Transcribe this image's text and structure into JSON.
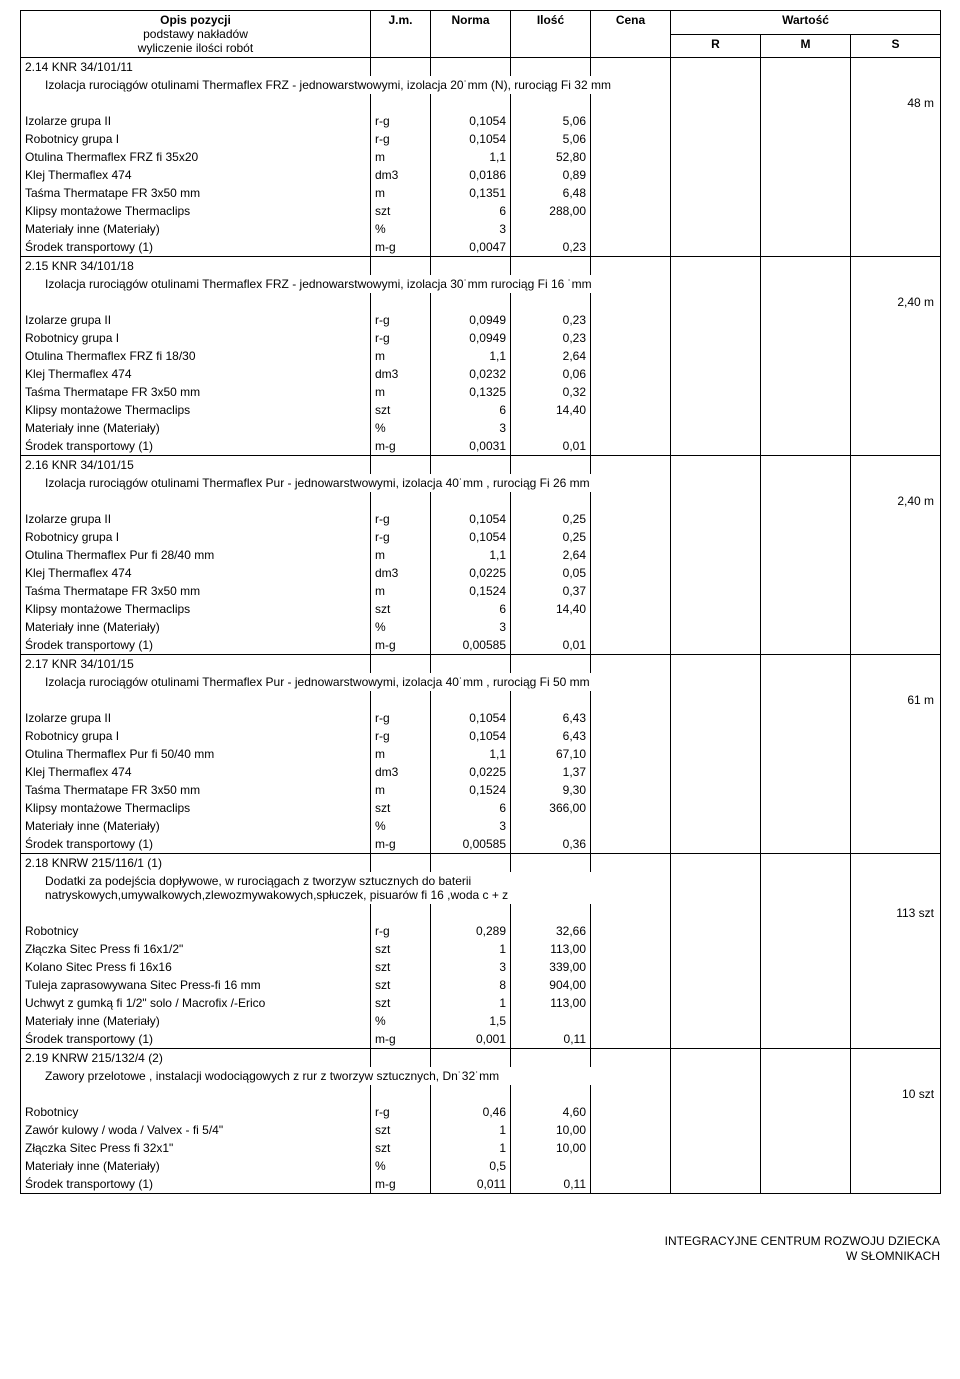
{
  "header": {
    "opis": "Opis pozycji",
    "sub1": "podstawy nakładów",
    "sub2": "wyliczenie ilości robót",
    "jm": "J.m.",
    "norma": "Norma",
    "ilosc": "Ilość",
    "cena": "Cena",
    "wartosc": "Wartość",
    "r": "R",
    "m": "M",
    "s": "S"
  },
  "sections": [
    {
      "code": "2.14 KNR 34/101/11",
      "title": "Izolacja rurociągów otulinami Thermaflex FRZ - jednowarstwowymi, izolacja 20˙mm (N), rurociąg Fi 32 mm",
      "total_qty": "48 m",
      "rows": [
        {
          "desc": "Izolarze grupa II",
          "jm": "r-g",
          "norma": "0,1054",
          "ilosc": "5,06"
        },
        {
          "desc": "Robotnicy grupa I",
          "jm": "r-g",
          "norma": "0,1054",
          "ilosc": "5,06"
        },
        {
          "desc": "Otulina Thermaflex FRZ fi 35x20",
          "jm": "m",
          "norma": "1,1",
          "ilosc": "52,80"
        },
        {
          "desc": "Klej Thermaflex 474",
          "jm": "dm3",
          "norma": "0,0186",
          "ilosc": "0,89"
        },
        {
          "desc": "Taśma Thermatape FR 3x50 mm",
          "jm": "m",
          "norma": "0,1351",
          "ilosc": "6,48"
        },
        {
          "desc": "Klipsy montażowe Thermaclips",
          "jm": "szt",
          "norma": "6",
          "ilosc": "288,00"
        },
        {
          "desc": "Materiały inne (Materiały)",
          "jm": "%",
          "norma": "3",
          "ilosc": ""
        },
        {
          "desc": "Środek transportowy (1)",
          "jm": "m-g",
          "norma": "0,0047",
          "ilosc": "0,23"
        }
      ]
    },
    {
      "code": "2.15 KNR 34/101/18",
      "title": "Izolacja rurociągów otulinami Thermaflex FRZ - jednowarstwowymi, izolacja 30˙mm  rurociąg Fi 16 ˙mm",
      "total_qty": "2,40 m",
      "rows": [
        {
          "desc": "Izolarze grupa II",
          "jm": "r-g",
          "norma": "0,0949",
          "ilosc": "0,23"
        },
        {
          "desc": "Robotnicy grupa I",
          "jm": "r-g",
          "norma": "0,0949",
          "ilosc": "0,23"
        },
        {
          "desc": "Otulina Thermaflex FRZ fi 18/30",
          "jm": "m",
          "norma": "1,1",
          "ilosc": "2,64"
        },
        {
          "desc": "Klej Thermaflex 474",
          "jm": "dm3",
          "norma": "0,0232",
          "ilosc": "0,06"
        },
        {
          "desc": "Taśma Thermatape FR 3x50 mm",
          "jm": "m",
          "norma": "0,1325",
          "ilosc": "0,32"
        },
        {
          "desc": "Klipsy montażowe Thermaclips",
          "jm": "szt",
          "norma": "6",
          "ilosc": "14,40"
        },
        {
          "desc": "Materiały inne (Materiały)",
          "jm": "%",
          "norma": "3",
          "ilosc": ""
        },
        {
          "desc": "Środek transportowy (1)",
          "jm": "m-g",
          "norma": "0,0031",
          "ilosc": "0,01"
        }
      ]
    },
    {
      "code": "2.16 KNR 34/101/15",
      "title": "Izolacja rurociągów otulinami Thermaflex Pur  - jednowarstwowymi, izolacja 40˙mm , rurociąg Fi 26 mm",
      "total_qty": "2,40 m",
      "rows": [
        {
          "desc": "Izolarze grupa II",
          "jm": "r-g",
          "norma": "0,1054",
          "ilosc": "0,25"
        },
        {
          "desc": "Robotnicy grupa I",
          "jm": "r-g",
          "norma": "0,1054",
          "ilosc": "0,25"
        },
        {
          "desc": "Otulina Thermaflex Pur fi 28/40 mm",
          "jm": "m",
          "norma": "1,1",
          "ilosc": "2,64"
        },
        {
          "desc": "Klej Thermaflex 474",
          "jm": "dm3",
          "norma": "0,0225",
          "ilosc": "0,05"
        },
        {
          "desc": "Taśma Thermatape FR 3x50 mm",
          "jm": "m",
          "norma": "0,1524",
          "ilosc": "0,37"
        },
        {
          "desc": "Klipsy montażowe Thermaclips",
          "jm": "szt",
          "norma": "6",
          "ilosc": "14,40"
        },
        {
          "desc": "Materiały inne (Materiały)",
          "jm": "%",
          "norma": "3",
          "ilosc": ""
        },
        {
          "desc": "Środek transportowy (1)",
          "jm": "m-g",
          "norma": "0,00585",
          "ilosc": "0,01"
        }
      ]
    },
    {
      "code": "2.17 KNR 34/101/15",
      "title": "Izolacja rurociągów otulinami Thermaflex Pur  - jednowarstwowymi, izolacja 40˙mm , rurociąg Fi 50 mm",
      "total_qty": "61 m",
      "rows": [
        {
          "desc": "Izolarze grupa II",
          "jm": "r-g",
          "norma": "0,1054",
          "ilosc": "6,43"
        },
        {
          "desc": "Robotnicy grupa I",
          "jm": "r-g",
          "norma": "0,1054",
          "ilosc": "6,43"
        },
        {
          "desc": "Otulina Thermaflex Pur fi 50/40 mm",
          "jm": "m",
          "norma": "1,1",
          "ilosc": "67,10"
        },
        {
          "desc": "Klej Thermaflex 474",
          "jm": "dm3",
          "norma": "0,0225",
          "ilosc": "1,37"
        },
        {
          "desc": "Taśma Thermatape FR 3x50 mm",
          "jm": "m",
          "norma": "0,1524",
          "ilosc": "9,30"
        },
        {
          "desc": "Klipsy montażowe Thermaclips",
          "jm": "szt",
          "norma": "6",
          "ilosc": "366,00"
        },
        {
          "desc": "Materiały inne (Materiały)",
          "jm": "%",
          "norma": "3",
          "ilosc": ""
        },
        {
          "desc": "Środek transportowy (1)",
          "jm": "m-g",
          "norma": "0,00585",
          "ilosc": "0,36"
        }
      ]
    },
    {
      "code": "2.18 KNRW 215/116/1 (1)",
      "title": "Dodatki za podejścia dopływowe, w rurociągach z tworzyw sztucznych  do baterii natryskowych,umywalkowych,zlewozmywakowych,spłuczek, pisuarów fi 16 ,woda c + z",
      "total_qty": "113 szt",
      "rows": [
        {
          "desc": "Robotnicy",
          "jm": "r-g",
          "norma": "0,289",
          "ilosc": "32,66"
        },
        {
          "desc": "Złączka Sitec Press fi 16x1/2\"",
          "jm": "szt",
          "norma": "1",
          "ilosc": "113,00"
        },
        {
          "desc": "Kolano Sitec Press fi 16x16",
          "jm": "szt",
          "norma": "3",
          "ilosc": "339,00"
        },
        {
          "desc": "Tuleja zaprasowywana Sitec Press-fi 16 mm",
          "jm": "szt",
          "norma": "8",
          "ilosc": "904,00"
        },
        {
          "desc": "Uchwyt z gumką fi 1/2\" solo / Macrofix /-Erico",
          "jm": "szt",
          "norma": "1",
          "ilosc": "113,00"
        },
        {
          "desc": "Materiały inne (Materiały)",
          "jm": "%",
          "norma": "1,5",
          "ilosc": ""
        },
        {
          "desc": "Środek transportowy (1)",
          "jm": "m-g",
          "norma": "0,001",
          "ilosc": "0,11"
        }
      ]
    },
    {
      "code": "2.19 KNRW 215/132/4 (2)",
      "title": "Zawory przelotowe , instalacji wodociągowych z rur z tworzyw sztucznych, Dn˙32˙mm",
      "total_qty": "10 szt",
      "rows": [
        {
          "desc": "Robotnicy",
          "jm": "r-g",
          "norma": "0,46",
          "ilosc": "4,60"
        },
        {
          "desc": "Zawór kulowy / woda / Valvex - fi 5/4\"",
          "jm": "szt",
          "norma": "1",
          "ilosc": "10,00"
        },
        {
          "desc": "Złączka Sitec Press fi 32x1\"",
          "jm": "szt",
          "norma": "1",
          "ilosc": "10,00"
        },
        {
          "desc": "Materiały inne (Materiały)",
          "jm": "%",
          "norma": "0,5",
          "ilosc": ""
        },
        {
          "desc": "Środek transportowy (1)",
          "jm": "m-g",
          "norma": "0,011",
          "ilosc": "0,11"
        }
      ]
    }
  ],
  "footer": {
    "line1": "INTEGRACYJNE CENTRUM ROZWOJU DZIECKA",
    "line2": "W SŁOMNIKACH"
  }
}
